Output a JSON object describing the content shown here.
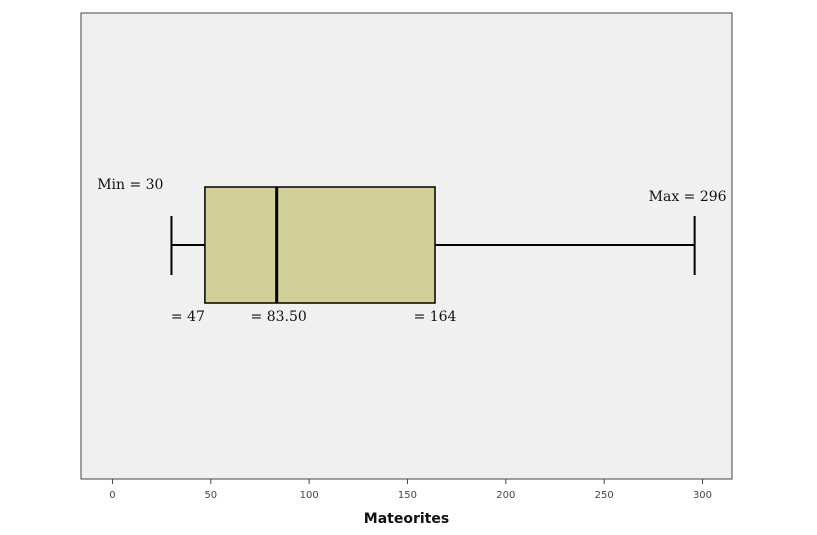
{
  "chart_data": {
    "type": "boxplot",
    "xlabel": "Mateorites",
    "xlim": [
      -16,
      315
    ],
    "ticks": [
      0,
      50,
      100,
      150,
      200,
      250,
      300
    ],
    "box": {
      "min": 30,
      "q1": 47,
      "median": 83.5,
      "q3": 164,
      "max": 296
    },
    "annotations": {
      "min": "Min = 30",
      "q1": "= 47",
      "median": "= 83.50",
      "q3": "= 164",
      "max": "Max = 296"
    },
    "colors": {
      "plot_background": "#f0f0f0",
      "box_fill": "#d3cf99",
      "stroke": "#000000"
    }
  }
}
